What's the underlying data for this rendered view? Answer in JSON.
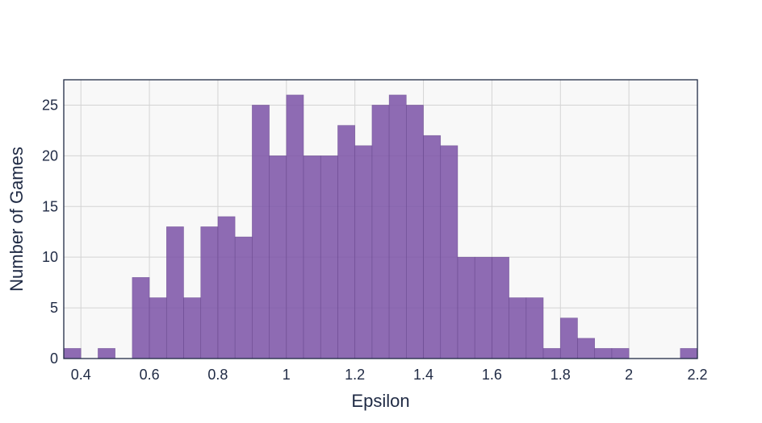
{
  "colors": {
    "bar_fill": "#7e57a8",
    "bar_stroke": "#5f3f85",
    "plot_background": "#f8f8f8",
    "grid": "#d4d4d4",
    "frame": "#1f2a44",
    "text": "#1f2a44"
  },
  "chart_data": {
    "type": "bar",
    "subtype": "histogram",
    "title": "",
    "xlabel": "Epsilon",
    "ylabel": "Number of Games",
    "xlim": [
      0.35,
      2.2
    ],
    "ylim": [
      0,
      27.5
    ],
    "bin_width": 0.05,
    "x_ticks": [
      0.4,
      0.6,
      0.8,
      1,
      1.2,
      1.4,
      1.6,
      1.8,
      2,
      2.2
    ],
    "x_tick_labels": [
      "0.4",
      "0.6",
      "0.8",
      "1",
      "1.2",
      "1.4",
      "1.6",
      "1.8",
      "2",
      "2.2"
    ],
    "y_ticks": [
      0,
      5,
      10,
      15,
      20,
      25
    ],
    "y_tick_labels": [
      "0",
      "5",
      "10",
      "15",
      "20",
      "25"
    ],
    "grid": true,
    "legend": "none",
    "bins": [
      {
        "x0": 0.35,
        "x1": 0.4,
        "count": 1
      },
      {
        "x0": 0.4,
        "x1": 0.45,
        "count": 0
      },
      {
        "x0": 0.45,
        "x1": 0.5,
        "count": 1
      },
      {
        "x0": 0.5,
        "x1": 0.55,
        "count": 0
      },
      {
        "x0": 0.55,
        "x1": 0.6,
        "count": 8
      },
      {
        "x0": 0.6,
        "x1": 0.65,
        "count": 6
      },
      {
        "x0": 0.65,
        "x1": 0.7,
        "count": 13
      },
      {
        "x0": 0.7,
        "x1": 0.75,
        "count": 6
      },
      {
        "x0": 0.75,
        "x1": 0.8,
        "count": 13
      },
      {
        "x0": 0.8,
        "x1": 0.85,
        "count": 14
      },
      {
        "x0": 0.85,
        "x1": 0.9,
        "count": 12
      },
      {
        "x0": 0.9,
        "x1": 0.95,
        "count": 25
      },
      {
        "x0": 0.95,
        "x1": 1.0,
        "count": 20
      },
      {
        "x0": 1.0,
        "x1": 1.05,
        "count": 26
      },
      {
        "x0": 1.05,
        "x1": 1.1,
        "count": 20
      },
      {
        "x0": 1.1,
        "x1": 1.15,
        "count": 20
      },
      {
        "x0": 1.15,
        "x1": 1.2,
        "count": 23
      },
      {
        "x0": 1.2,
        "x1": 1.25,
        "count": 21
      },
      {
        "x0": 1.25,
        "x1": 1.3,
        "count": 25
      },
      {
        "x0": 1.3,
        "x1": 1.35,
        "count": 26
      },
      {
        "x0": 1.35,
        "x1": 1.4,
        "count": 25
      },
      {
        "x0": 1.4,
        "x1": 1.45,
        "count": 22
      },
      {
        "x0": 1.45,
        "x1": 1.5,
        "count": 21
      },
      {
        "x0": 1.5,
        "x1": 1.55,
        "count": 10
      },
      {
        "x0": 1.55,
        "x1": 1.6,
        "count": 10
      },
      {
        "x0": 1.6,
        "x1": 1.65,
        "count": 10
      },
      {
        "x0": 1.65,
        "x1": 1.7,
        "count": 6
      },
      {
        "x0": 1.7,
        "x1": 1.75,
        "count": 6
      },
      {
        "x0": 1.75,
        "x1": 1.8,
        "count": 1
      },
      {
        "x0": 1.8,
        "x1": 1.85,
        "count": 4
      },
      {
        "x0": 1.85,
        "x1": 1.9,
        "count": 2
      },
      {
        "x0": 1.9,
        "x1": 1.95,
        "count": 1
      },
      {
        "x0": 1.95,
        "x1": 2.0,
        "count": 1
      },
      {
        "x0": 2.0,
        "x1": 2.05,
        "count": 0
      },
      {
        "x0": 2.05,
        "x1": 2.1,
        "count": 0
      },
      {
        "x0": 2.1,
        "x1": 2.15,
        "count": 0
      },
      {
        "x0": 2.15,
        "x1": 2.2,
        "count": 1
      }
    ]
  }
}
